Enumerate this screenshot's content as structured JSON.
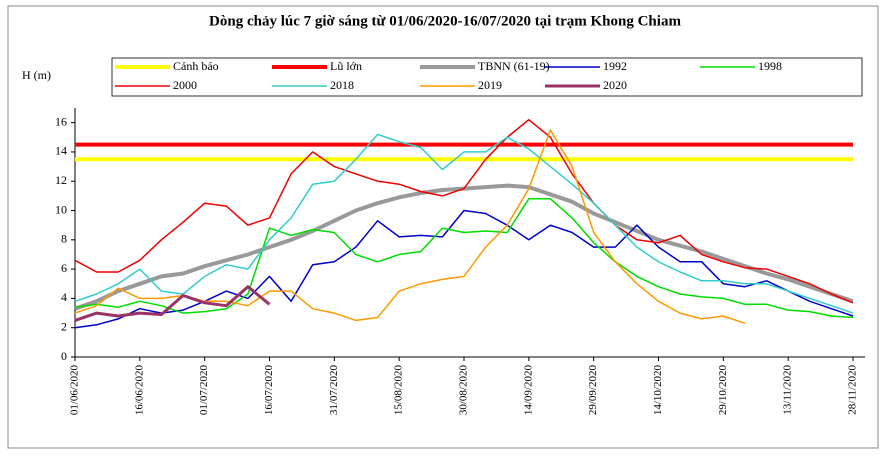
{
  "chart_data": {
    "type": "line",
    "title": "Dòng chảy lúc 7 giờ sáng từ 01/06/2020-16/07/2020 tại trạm Khong Chiam",
    "y_label": "H (m)",
    "categories": [
      "01/06/2020",
      null,
      null,
      "16/06/2020",
      null,
      null,
      "01/07/2020",
      null,
      null,
      "16/07/2020",
      null,
      null,
      "31/07/2020",
      null,
      null,
      "15/08/2020",
      null,
      null,
      "30/08/2020",
      null,
      null,
      "14/09/2020",
      null,
      null,
      "29/09/2020",
      null,
      null,
      "14/10/2020",
      null,
      null,
      "29/10/2020",
      null,
      null,
      "13/11/2020",
      null,
      null,
      "28/11/2020"
    ],
    "ylim": [
      0,
      17
    ],
    "yticks": [
      0,
      2,
      4,
      6,
      8,
      10,
      12,
      14,
      16
    ],
    "series": [
      {
        "name": "Cảnh báo",
        "color": "#ffff00",
        "values": [
          13.5,
          13.5,
          13.5,
          13.5,
          13.5,
          13.5,
          13.5,
          13.5,
          13.5,
          13.5,
          13.5,
          13.5,
          13.5,
          13.5,
          13.5,
          13.5,
          13.5,
          13.5,
          13.5,
          13.5,
          13.5,
          13.5,
          13.5,
          13.5,
          13.5,
          13.5,
          13.5,
          13.5,
          13.5,
          13.5,
          13.5,
          13.5,
          13.5,
          13.5,
          13.5,
          13.5,
          13.5
        ]
      },
      {
        "name": "Lũ lớn",
        "color": "#ff0000",
        "values": [
          14.5,
          14.5,
          14.5,
          14.5,
          14.5,
          14.5,
          14.5,
          14.5,
          14.5,
          14.5,
          14.5,
          14.5,
          14.5,
          14.5,
          14.5,
          14.5,
          14.5,
          14.5,
          14.5,
          14.5,
          14.5,
          14.5,
          14.5,
          14.5,
          14.5,
          14.5,
          14.5,
          14.5,
          14.5,
          14.5,
          14.5,
          14.5,
          14.5,
          14.5,
          14.5,
          14.5,
          14.5
        ]
      },
      {
        "name": "TBNN (61-19)",
        "color": "#999999",
        "values": [
          3.3,
          3.8,
          4.5,
          5.0,
          5.5,
          5.7,
          6.2,
          6.6,
          7.0,
          7.5,
          8.0,
          8.6,
          9.3,
          10.0,
          10.5,
          10.9,
          11.2,
          11.4,
          11.5,
          11.6,
          11.7,
          11.6,
          11.1,
          10.6,
          9.8,
          9.2,
          8.6,
          8.0,
          7.6,
          7.2,
          6.7,
          6.2,
          5.7,
          5.3,
          4.8,
          4.3,
          3.8
        ]
      },
      {
        "name": "1992",
        "color": "#0000cc",
        "values": [
          2.0,
          2.2,
          2.6,
          3.3,
          3.0,
          3.2,
          3.8,
          4.5,
          4.0,
          5.5,
          3.8,
          6.3,
          6.5,
          7.5,
          9.3,
          8.2,
          8.3,
          8.2,
          10.0,
          9.8,
          9.0,
          8.0,
          9.0,
          8.5,
          7.5,
          7.5,
          9.0,
          7.5,
          6.5,
          6.5,
          5.0,
          4.8,
          5.2,
          4.5,
          3.8,
          3.3,
          2.8
        ]
      },
      {
        "name": "1998",
        "color": "#00dd00",
        "values": [
          3.4,
          3.6,
          3.4,
          3.8,
          3.5,
          3.0,
          3.1,
          3.3,
          4.3,
          8.8,
          8.3,
          8.7,
          8.5,
          7.0,
          6.5,
          7.0,
          7.2,
          8.8,
          8.5,
          8.6,
          8.5,
          10.8,
          10.8,
          9.5,
          7.8,
          6.5,
          5.5,
          4.8,
          4.3,
          4.1,
          4.0,
          3.6,
          3.6,
          3.2,
          3.1,
          2.8,
          2.7
        ]
      },
      {
        "name": "2000",
        "color": "#ee0000",
        "values": [
          6.6,
          5.8,
          5.8,
          6.6,
          8.0,
          9.2,
          10.5,
          10.3,
          9.0,
          9.5,
          12.5,
          14.0,
          13.0,
          12.5,
          12.0,
          11.8,
          11.3,
          11.0,
          11.5,
          13.5,
          15.0,
          16.2,
          15.0,
          12.5,
          10.5,
          9.0,
          8.0,
          7.8,
          8.3,
          7.0,
          6.5,
          6.1,
          6.0,
          5.5,
          5.0,
          4.3,
          3.7
        ]
      },
      {
        "name": "2018",
        "color": "#33cccc",
        "values": [
          3.8,
          4.3,
          5.0,
          6.0,
          4.5,
          4.3,
          5.5,
          6.3,
          6.0,
          8.0,
          9.5,
          11.8,
          12.0,
          13.5,
          15.2,
          14.7,
          14.3,
          12.8,
          14.0,
          14.0,
          15.0,
          14.2,
          13.0,
          11.8,
          10.5,
          9.0,
          7.5,
          6.5,
          5.8,
          5.2,
          5.2,
          5.0,
          5.0,
          4.5,
          4.0,
          3.5,
          3.0
        ]
      },
      {
        "name": "2019",
        "color": "#ff9900",
        "values": [
          3.0,
          3.5,
          4.7,
          4.0,
          4.0,
          4.2,
          3.8,
          3.8,
          3.5,
          4.5,
          4.5,
          3.3,
          3.0,
          2.5,
          2.7,
          4.5,
          5.0,
          5.3,
          5.5,
          7.5,
          9.0,
          11.5,
          15.5,
          13.0,
          8.5,
          6.5,
          5.0,
          3.8,
          3.0,
          2.6,
          2.8,
          2.3,
          null,
          null,
          null,
          null,
          null
        ]
      },
      {
        "name": "2020",
        "color": "#993366",
        "values": [
          2.5,
          3.0,
          2.8,
          3.0,
          2.9,
          4.2,
          3.7,
          3.5,
          4.8,
          3.6,
          null,
          null,
          null,
          null,
          null,
          null,
          null,
          null,
          null,
          null,
          null,
          null,
          null,
          null,
          null,
          null,
          null,
          null,
          null,
          null,
          null,
          null,
          null,
          null,
          null,
          null,
          null
        ]
      }
    ]
  }
}
